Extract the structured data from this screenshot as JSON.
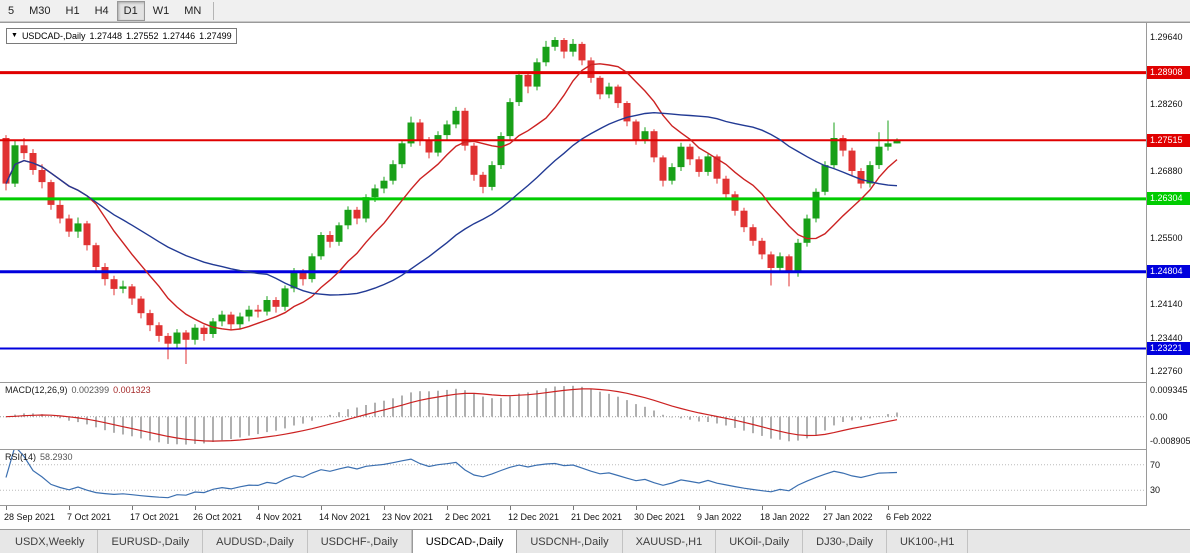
{
  "toolbar": {
    "periods": [
      {
        "label": "5",
        "active": false
      },
      {
        "label": "M30",
        "active": false
      },
      {
        "label": "H1",
        "active": false
      },
      {
        "label": "H4",
        "active": false
      },
      {
        "label": "D1",
        "active": true
      },
      {
        "label": "W1",
        "active": false
      },
      {
        "label": "MN",
        "active": false
      }
    ]
  },
  "chart_data": {
    "type": "candlestick",
    "title": "USDCAD-,Daily",
    "ohlc": {
      "open": "1.27448",
      "high": "1.27552",
      "low": "1.27446",
      "close": "1.27499"
    },
    "colors": {
      "up": "#18a018",
      "down": "#e03232",
      "background": "#ffffff"
    },
    "price_range": {
      "max": 1.2993,
      "min": 1.2253
    },
    "price_axis_labels": [
      "1.29640",
      "1.28260",
      "1.26880",
      "1.25500",
      "1.24140",
      "1.23440",
      "1.22760"
    ],
    "hlines": [
      {
        "price": 1.28908,
        "label": "1.28908",
        "color": "#e00000",
        "thickness": 3
      },
      {
        "price": 1.27515,
        "label": "1.27515",
        "color": "#e00000",
        "thickness": 2
      },
      {
        "price": 1.26304,
        "label": "1.26304",
        "color": "#00cc00",
        "thickness": 3
      },
      {
        "price": 1.24804,
        "label": "1.24804",
        "color": "#0000dd",
        "thickness": 3
      },
      {
        "price": 1.23221,
        "label": "1.23221",
        "color": "#0000dd",
        "thickness": 2
      }
    ],
    "moving_averages": [
      {
        "type": "sma",
        "period": 10,
        "color": "#cc2222"
      },
      {
        "type": "sma",
        "period": 30,
        "color": "#223a94"
      }
    ],
    "date_labels": [
      "28 Sep 2021",
      "7 Oct 2021",
      "17 Oct 2021",
      "26 Oct 2021",
      "4 Nov 2021",
      "14 Nov 2021",
      "23 Nov 2021",
      "2 Dec 2021",
      "12 Dec 2021",
      "21 Dec 2021",
      "30 Dec 2021",
      "9 Jan 2022",
      "18 Jan 2022",
      "27 Jan 2022",
      "6 Feb 2022"
    ],
    "date_label_step": 7,
    "candles": [
      [
        1.2756,
        1.2762,
        1.2648,
        1.2662
      ],
      [
        1.2662,
        1.275,
        1.2655,
        1.2741
      ],
      [
        1.2741,
        1.2756,
        1.2712,
        1.2725
      ],
      [
        1.2725,
        1.2733,
        1.268,
        1.269
      ],
      [
        1.269,
        1.2702,
        1.2652,
        1.2665
      ],
      [
        1.2665,
        1.267,
        1.2608,
        1.2618
      ],
      [
        1.2618,
        1.2632,
        1.258,
        1.259
      ],
      [
        1.259,
        1.2598,
        1.2552,
        1.2563
      ],
      [
        1.2563,
        1.2592,
        1.255,
        1.258
      ],
      [
        1.258,
        1.2585,
        1.2524,
        1.2535
      ],
      [
        1.2535,
        1.254,
        1.2478,
        1.249
      ],
      [
        1.249,
        1.2498,
        1.2452,
        1.2465
      ],
      [
        1.2465,
        1.2472,
        1.2432,
        1.2445
      ],
      [
        1.2445,
        1.2462,
        1.2436,
        1.245
      ],
      [
        1.245,
        1.2455,
        1.2412,
        1.2425
      ],
      [
        1.2425,
        1.243,
        1.2384,
        1.2395
      ],
      [
        1.2395,
        1.2402,
        1.2358,
        1.237
      ],
      [
        1.237,
        1.2376,
        1.2336,
        1.2348
      ],
      [
        1.2348,
        1.2354,
        1.23,
        1.2332
      ],
      [
        1.2332,
        1.2362,
        1.232,
        1.2355
      ],
      [
        1.2355,
        1.236,
        1.229,
        1.234
      ],
      [
        1.234,
        1.2372,
        1.233,
        1.2365
      ],
      [
        1.2365,
        1.237,
        1.2338,
        1.2352
      ],
      [
        1.2352,
        1.2385,
        1.2344,
        1.2378
      ],
      [
        1.2378,
        1.24,
        1.2368,
        1.2392
      ],
      [
        1.2392,
        1.2398,
        1.236,
        1.2372
      ],
      [
        1.2372,
        1.2396,
        1.2362,
        1.2388
      ],
      [
        1.2388,
        1.241,
        1.2378,
        1.2402
      ],
      [
        1.2402,
        1.2412,
        1.2386,
        1.2398
      ],
      [
        1.2398,
        1.243,
        1.239,
        1.2422
      ],
      [
        1.2422,
        1.2428,
        1.2396,
        1.2408
      ],
      [
        1.2408,
        1.2452,
        1.24,
        1.2446
      ],
      [
        1.2446,
        1.2488,
        1.2438,
        1.248
      ],
      [
        1.248,
        1.2486,
        1.2452,
        1.2465
      ],
      [
        1.2465,
        1.2518,
        1.2458,
        1.2512
      ],
      [
        1.2512,
        1.2562,
        1.2505,
        1.2556
      ],
      [
        1.2556,
        1.2564,
        1.253,
        1.2542
      ],
      [
        1.2542,
        1.2582,
        1.2534,
        1.2576
      ],
      [
        1.2576,
        1.2615,
        1.2568,
        1.2608
      ],
      [
        1.2608,
        1.2614,
        1.2578,
        1.259
      ],
      [
        1.259,
        1.264,
        1.2582,
        1.2634
      ],
      [
        1.2634,
        1.266,
        1.2624,
        1.2652
      ],
      [
        1.2652,
        1.2676,
        1.2642,
        1.2668
      ],
      [
        1.2668,
        1.271,
        1.266,
        1.2702
      ],
      [
        1.2702,
        1.2752,
        1.2694,
        1.2745
      ],
      [
        1.2745,
        1.28,
        1.2738,
        1.2788
      ],
      [
        1.2788,
        1.2795,
        1.274,
        1.2752
      ],
      [
        1.2752,
        1.2758,
        1.2714,
        1.2726
      ],
      [
        1.2726,
        1.277,
        1.2718,
        1.2762
      ],
      [
        1.2762,
        1.2792,
        1.2752,
        1.2784
      ],
      [
        1.2784,
        1.282,
        1.2776,
        1.2812
      ],
      [
        1.2812,
        1.2818,
        1.273,
        1.274
      ],
      [
        1.274,
        1.2746,
        1.2668,
        1.268
      ],
      [
        1.268,
        1.2686,
        1.2642,
        1.2655
      ],
      [
        1.2655,
        1.2708,
        1.2648,
        1.27
      ],
      [
        1.27,
        1.2768,
        1.2692,
        1.276
      ],
      [
        1.276,
        1.2838,
        1.2752,
        1.283
      ],
      [
        1.283,
        1.2894,
        1.2822,
        1.2886
      ],
      [
        1.2886,
        1.2892,
        1.2848,
        1.2862
      ],
      [
        1.2862,
        1.292,
        1.2854,
        1.2912
      ],
      [
        1.2912,
        1.2956,
        1.2904,
        1.2944
      ],
      [
        1.2944,
        1.2964,
        1.2936,
        1.2958
      ],
      [
        1.2958,
        1.2962,
        1.292,
        1.2934
      ],
      [
        1.2934,
        1.296,
        1.2924,
        1.295
      ],
      [
        1.295,
        1.2954,
        1.2906,
        1.2916
      ],
      [
        1.2916,
        1.2922,
        1.287,
        1.288
      ],
      [
        1.288,
        1.2884,
        1.2836,
        1.2846
      ],
      [
        1.2846,
        1.287,
        1.2838,
        1.2862
      ],
      [
        1.2862,
        1.2866,
        1.2818,
        1.2828
      ],
      [
        1.2828,
        1.2832,
        1.278,
        1.279
      ],
      [
        1.279,
        1.2794,
        1.2742,
        1.2752
      ],
      [
        1.2752,
        1.2778,
        1.2744,
        1.277
      ],
      [
        1.277,
        1.2774,
        1.2706,
        1.2716
      ],
      [
        1.2716,
        1.272,
        1.2656,
        1.2668
      ],
      [
        1.2668,
        1.2704,
        1.266,
        1.2696
      ],
      [
        1.2696,
        1.2746,
        1.2688,
        1.2738
      ],
      [
        1.2738,
        1.2744,
        1.27,
        1.2712
      ],
      [
        1.2712,
        1.2718,
        1.2676,
        1.2686
      ],
      [
        1.2686,
        1.2726,
        1.2678,
        1.2718
      ],
      [
        1.2718,
        1.2722,
        1.2662,
        1.2672
      ],
      [
        1.2672,
        1.2678,
        1.263,
        1.264
      ],
      [
        1.264,
        1.2646,
        1.2596,
        1.2606
      ],
      [
        1.2606,
        1.2612,
        1.2562,
        1.2572
      ],
      [
        1.2572,
        1.2578,
        1.2534,
        1.2544
      ],
      [
        1.2544,
        1.255,
        1.2506,
        1.2516
      ],
      [
        1.2516,
        1.2522,
        1.2452,
        1.2488
      ],
      [
        1.2488,
        1.252,
        1.2478,
        1.2512
      ],
      [
        1.2512,
        1.2516,
        1.245,
        1.2478
      ],
      [
        1.2478,
        1.2548,
        1.247,
        1.254
      ],
      [
        1.254,
        1.2598,
        1.2532,
        1.259
      ],
      [
        1.259,
        1.2652,
        1.2582,
        1.2645
      ],
      [
        1.2645,
        1.2708,
        1.2638,
        1.27
      ],
      [
        1.27,
        1.2788,
        1.2694,
        1.2756
      ],
      [
        1.2756,
        1.2762,
        1.2718,
        1.273
      ],
      [
        1.273,
        1.2736,
        1.2678,
        1.2688
      ],
      [
        1.2688,
        1.2694,
        1.2652,
        1.2662
      ],
      [
        1.2662,
        1.2708,
        1.2654,
        1.27
      ],
      [
        1.27,
        1.2768,
        1.2692,
        1.2738
      ],
      [
        1.2738,
        1.2792,
        1.273,
        1.2745
      ],
      [
        1.27448,
        1.27552,
        1.27446,
        1.27499
      ]
    ],
    "macd": {
      "label": "MACD(12,26,9)",
      "value_main": "0.002399",
      "value_signal": "0.001323",
      "fast": 12,
      "slow": 26,
      "signal": 9,
      "axis_labels": [
        {
          "text": "0.009345",
          "value": 0.009345
        },
        {
          "text": "0.00",
          "value": 0
        },
        {
          "text": "-0.008905",
          "value": -0.008905
        }
      ],
      "scale_max": 0.00935,
      "scale_min": -0.00891,
      "histogram_color": "#b0b0b0",
      "signal_color": "#cc2222"
    },
    "rsi": {
      "label": "RSI(14)",
      "value": "58.2930",
      "period": 14,
      "levels": [
        70,
        30
      ],
      "axis_labels": [
        {
          "text": "70",
          "value": 70
        },
        {
          "text": "30",
          "value": 30
        }
      ],
      "scale_max": 90,
      "scale_min": 10,
      "color": "#3b6fb0",
      "level_color": "#bbbbbb"
    }
  },
  "tabbar": {
    "tabs": [
      {
        "label": "USDX,Weekly",
        "active": false
      },
      {
        "label": "EURUSD-,Daily",
        "active": false
      },
      {
        "label": "AUDUSD-,Daily",
        "active": false
      },
      {
        "label": "USDCHF-,Daily",
        "active": false
      },
      {
        "label": "USDCAD-,Daily",
        "active": true
      },
      {
        "label": "USDCNH-,Daily",
        "active": false
      },
      {
        "label": "XAUUSD-,H1",
        "active": false
      },
      {
        "label": "UKOil-,Daily",
        "active": false
      },
      {
        "label": "DJ30-,Daily",
        "active": false
      },
      {
        "label": "UK100-,H1",
        "active": false
      }
    ]
  }
}
